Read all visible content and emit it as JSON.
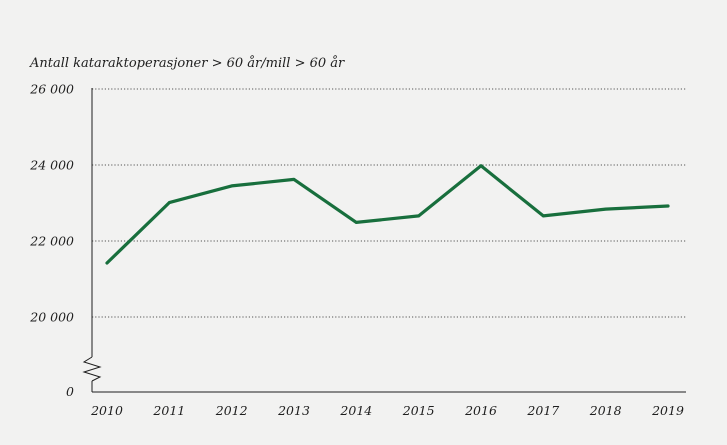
{
  "chart_data": {
    "type": "line",
    "title": "",
    "ylabel": "Antall kataraktoperasjoner > 60 år/mill > 60 år",
    "xlabel": "",
    "categories": [
      "2010",
      "2011",
      "2012",
      "2013",
      "2014",
      "2015",
      "2016",
      "2017",
      "2018",
      "2019"
    ],
    "series": [
      {
        "values": [
          21420,
          23010,
          23450,
          23620,
          22490,
          22660,
          23980,
          22660,
          22840,
          22920
        ]
      }
    ],
    "ylim": [
      20000,
      26000
    ],
    "yticks": [
      {
        "value": 26000,
        "label": "26 000"
      },
      {
        "value": 24000,
        "label": "24 000"
      },
      {
        "value": 22000,
        "label": "22 000"
      },
      {
        "value": 20000,
        "label": "20 000"
      }
    ],
    "axis_break": true,
    "axis_break_label": "0",
    "grid": "horizontal-dotted",
    "legend": "none",
    "line_color": "#186f3d"
  }
}
